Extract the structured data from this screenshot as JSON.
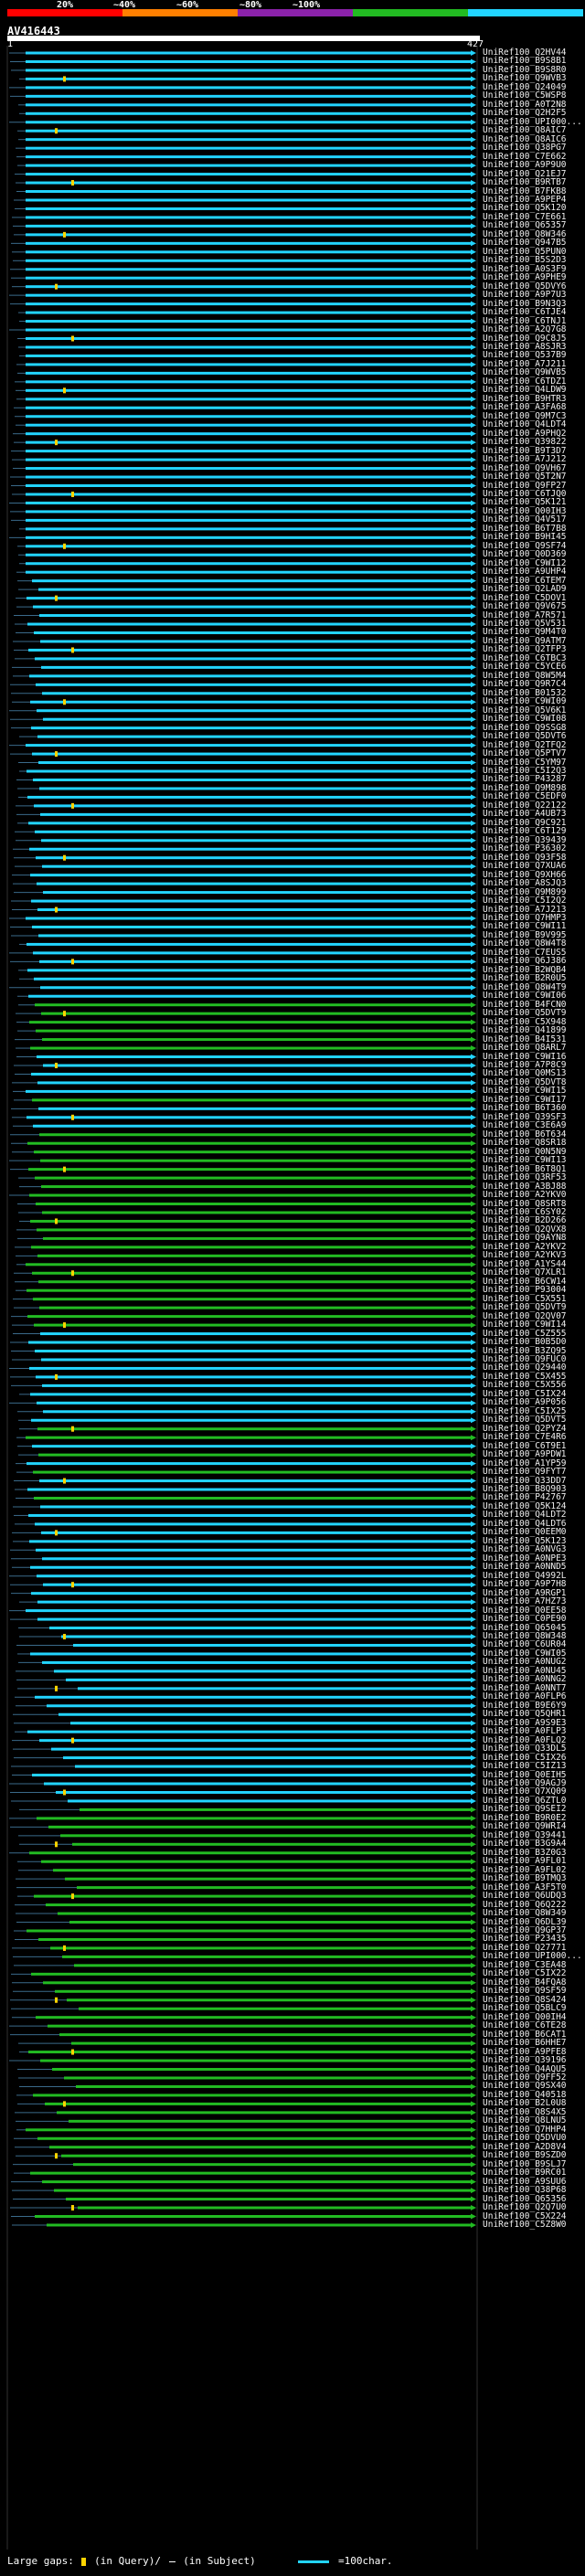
{
  "legend": {
    "labels": [
      "20%",
      "~40%",
      "~60%",
      "~80%",
      "~100%"
    ],
    "colors": [
      "#ff0000",
      "#ff7f00",
      "#8b22aa",
      "#22bb22",
      "#22d4ff"
    ]
  },
  "query": {
    "title": "AV416443",
    "start": "1",
    "end": "427"
  },
  "hits": [
    {
      "name": "UniRef100_Q2HV44",
      "color": "cyan"
    },
    {
      "name": "UniRef100_B9S8B1",
      "color": "cyan"
    },
    {
      "name": "UniRef100_B9S8R0",
      "color": "cyan"
    },
    {
      "name": "UniRef100_Q9WVB3",
      "color": "cyan"
    },
    {
      "name": "UniRef100_Q24049",
      "color": "cyan"
    },
    {
      "name": "UniRef100_C5WSP8",
      "color": "cyan"
    },
    {
      "name": "UniRef100_A0T2N8",
      "color": "cyan"
    },
    {
      "name": "UniRef100_Q2H2F5",
      "color": "cyan"
    },
    {
      "name": "UniRef100_UPI000...",
      "color": "cyan"
    },
    {
      "name": "UniRef100_Q8AIC7",
      "color": "cyan"
    },
    {
      "name": "UniRef100_Q8AIC6",
      "color": "cyan"
    },
    {
      "name": "UniRef100_Q38PG7",
      "color": "cyan"
    },
    {
      "name": "UniRef100_C7E662",
      "color": "cyan"
    },
    {
      "name": "UniRef100_A9P9U0",
      "color": "cyan"
    },
    {
      "name": "UniRef100_Q21EJ7",
      "color": "cyan"
    },
    {
      "name": "UniRef100_B9RTB7",
      "color": "cyan"
    },
    {
      "name": "UniRef100_B7FKB8",
      "color": "cyan"
    },
    {
      "name": "UniRef100_A9PEP4",
      "color": "cyan"
    },
    {
      "name": "UniRef100_Q5K120",
      "color": "cyan"
    },
    {
      "name": "UniRef100_C7E661",
      "color": "cyan"
    },
    {
      "name": "UniRef100_Q65357",
      "color": "cyan"
    },
    {
      "name": "UniRef100_Q8W346",
      "color": "cyan"
    },
    {
      "name": "UniRef100_Q947B5",
      "color": "cyan"
    },
    {
      "name": "UniRef100_Q5PUN0",
      "color": "cyan"
    },
    {
      "name": "UniRef100_B5S2D3",
      "color": "cyan"
    },
    {
      "name": "UniRef100_A0S3F9",
      "color": "cyan"
    },
    {
      "name": "UniRef100_A9PHE9",
      "color": "cyan"
    },
    {
      "name": "UniRef100_Q5DVY6",
      "color": "cyan"
    },
    {
      "name": "UniRef100_A9P7U3",
      "color": "cyan"
    },
    {
      "name": "UniRef100_B9N3Q3",
      "color": "cyan"
    },
    {
      "name": "UniRef100_C6TJE4",
      "color": "cyan"
    },
    {
      "name": "UniRef100_C6TNJ1",
      "color": "cyan"
    },
    {
      "name": "UniRef100_A2Q7G8",
      "color": "cyan"
    },
    {
      "name": "UniRef100_Q9C8J5",
      "color": "cyan"
    },
    {
      "name": "UniRef100_A8SJR3",
      "color": "cyan"
    },
    {
      "name": "UniRef100_Q537B9",
      "color": "cyan"
    },
    {
      "name": "UniRef100_A7J211",
      "color": "cyan"
    },
    {
      "name": "UniRef100_Q9WVB5",
      "color": "cyan"
    },
    {
      "name": "UniRef100_C6TDZ1",
      "color": "cyan"
    },
    {
      "name": "UniRef100_Q4LDW9",
      "color": "cyan"
    },
    {
      "name": "UniRef100_B9HTR3",
      "color": "cyan"
    },
    {
      "name": "UniRef100_A3FA68",
      "color": "cyan"
    },
    {
      "name": "UniRef100_Q9M7C3",
      "color": "cyan"
    },
    {
      "name": "UniRef100_Q4LDT4",
      "color": "cyan"
    },
    {
      "name": "UniRef100_A9PHQ2",
      "color": "cyan"
    },
    {
      "name": "UniRef100_Q39822",
      "color": "cyan"
    },
    {
      "name": "UniRef100_B9T3D7",
      "color": "cyan"
    },
    {
      "name": "UniRef100_A7J212",
      "color": "cyan"
    },
    {
      "name": "UniRef100_Q9VH67",
      "color": "cyan"
    },
    {
      "name": "UniRef100_Q5T2N7",
      "color": "cyan"
    },
    {
      "name": "UniRef100_Q9FP27",
      "color": "cyan"
    },
    {
      "name": "UniRef100_C6TJQ0",
      "color": "cyan"
    },
    {
      "name": "UniRef100_Q5K121",
      "color": "cyan"
    },
    {
      "name": "UniRef100_Q00IH3",
      "color": "cyan"
    },
    {
      "name": "UniRef100_Q4V517",
      "color": "cyan"
    },
    {
      "name": "UniRef100_B6T7B8",
      "color": "cyan"
    },
    {
      "name": "UniRef100_B9HI45",
      "color": "cyan"
    },
    {
      "name": "UniRef100_Q9SF74",
      "color": "cyan"
    },
    {
      "name": "UniRef100_Q0D369",
      "color": "cyan"
    },
    {
      "name": "UniRef100_C9WI12",
      "color": "cyan"
    },
    {
      "name": "UniRef100_A9UHP4",
      "color": "cyan"
    },
    {
      "name": "UniRef100_C6TEM7",
      "color": "cyan"
    },
    {
      "name": "UniRef100_Q2LAD9",
      "color": "cyan"
    },
    {
      "name": "UniRef100_C5DOV1",
      "color": "cyan"
    },
    {
      "name": "UniRef100_Q9V675",
      "color": "cyan"
    },
    {
      "name": "UniRef100_A7R571",
      "color": "cyan"
    },
    {
      "name": "UniRef100_Q5V531",
      "color": "cyan"
    },
    {
      "name": "UniRef100_Q9M4T0",
      "color": "cyan"
    },
    {
      "name": "UniRef100_Q9ATM7",
      "color": "cyan"
    },
    {
      "name": "UniRef100_Q2TFP3",
      "color": "cyan"
    },
    {
      "name": "UniRef100_C6TBC3",
      "color": "cyan"
    },
    {
      "name": "UniRef100_C5YCE6",
      "color": "cyan"
    },
    {
      "name": "UniRef100_Q8W5M4",
      "color": "cyan"
    },
    {
      "name": "UniRef100_Q9R7C4",
      "color": "cyan"
    },
    {
      "name": "UniRef100_B01532",
      "color": "cyan"
    },
    {
      "name": "UniRef100_C9WI09",
      "color": "cyan"
    },
    {
      "name": "UniRef100_Q5V6K1",
      "color": "cyan"
    },
    {
      "name": "UniRef100_C9WI08",
      "color": "cyan"
    },
    {
      "name": "UniRef100_Q9SSG8",
      "color": "cyan"
    },
    {
      "name": "UniRef100_Q5DVT6",
      "color": "cyan"
    },
    {
      "name": "UniRef100_Q2TFQ2",
      "color": "cyan"
    },
    {
      "name": "UniRef100_Q5PTV7",
      "color": "cyan"
    },
    {
      "name": "UniRef100_C5YM97",
      "color": "cyan"
    },
    {
      "name": "UniRef100_C5I2Q3",
      "color": "cyan"
    },
    {
      "name": "UniRef100_P43287",
      "color": "cyan"
    },
    {
      "name": "UniRef100_Q9M898",
      "color": "cyan"
    },
    {
      "name": "UniRef100_C5EDF0",
      "color": "cyan"
    },
    {
      "name": "UniRef100_Q22122",
      "color": "cyan"
    },
    {
      "name": "UniRef100_A4UB73",
      "color": "cyan"
    },
    {
      "name": "UniRef100_Q9C921",
      "color": "cyan"
    },
    {
      "name": "UniRef100_C6T129",
      "color": "cyan"
    },
    {
      "name": "UniRef100_Q39439",
      "color": "cyan"
    },
    {
      "name": "UniRef100_P36302",
      "color": "cyan"
    },
    {
      "name": "UniRef100_Q93F58",
      "color": "cyan"
    },
    {
      "name": "UniRef100_Q7XUA6",
      "color": "cyan"
    },
    {
      "name": "UniRef100_Q9XH66",
      "color": "cyan"
    },
    {
      "name": "UniRef100_A8SJQ3",
      "color": "cyan"
    },
    {
      "name": "UniRef100_Q9M899",
      "color": "cyan"
    },
    {
      "name": "UniRef100_C5I2Q2",
      "color": "cyan"
    },
    {
      "name": "UniRef100_A7J213",
      "color": "cyan"
    },
    {
      "name": "UniRef100_Q7HMP3",
      "color": "cyan"
    },
    {
      "name": "UniRef100_C9WI11",
      "color": "cyan"
    },
    {
      "name": "UniRef100_B9V995",
      "color": "cyan"
    },
    {
      "name": "UniRef100_Q8W4T8",
      "color": "cyan"
    },
    {
      "name": "UniRef100_C7EUS5",
      "color": "cyan"
    },
    {
      "name": "UniRef100_Q6J386",
      "color": "cyan"
    },
    {
      "name": "UniRef100_B2WQB4",
      "color": "cyan"
    },
    {
      "name": "UniRef100_B2R0U5",
      "color": "cyan"
    },
    {
      "name": "UniRef100_Q8W4T9",
      "color": "cyan"
    },
    {
      "name": "UniRef100_C9WI06",
      "color": "cyan"
    },
    {
      "name": "UniRef100_B4FCN0",
      "color": "green"
    },
    {
      "name": "UniRef100_Q5DVT9",
      "color": "green"
    },
    {
      "name": "UniRef100_C5X948",
      "color": "green"
    },
    {
      "name": "UniRef100_Q41899",
      "color": "green"
    },
    {
      "name": "UniRef100_B4I531",
      "color": "green"
    },
    {
      "name": "UniRef100_Q8ARL7",
      "color": "green"
    },
    {
      "name": "UniRef100_C9WI16",
      "color": "cyan"
    },
    {
      "name": "UniRef100_A7P8C9",
      "color": "cyan"
    },
    {
      "name": "UniRef100_Q0MS13",
      "color": "cyan"
    },
    {
      "name": "UniRef100_Q5DVT8",
      "color": "cyan"
    },
    {
      "name": "UniRef100_C9WI15",
      "color": "cyan"
    },
    {
      "name": "UniRef100_C9WI17",
      "color": "green"
    },
    {
      "name": "UniRef100_B6T360",
      "color": "cyan"
    },
    {
      "name": "UniRef100_Q39SF3",
      "color": "cyan"
    },
    {
      "name": "UniRef100_C3E6A9",
      "color": "cyan"
    },
    {
      "name": "UniRef100_B6T634",
      "color": "green"
    },
    {
      "name": "UniRef100_Q8SR18",
      "color": "green"
    },
    {
      "name": "UniRef100_Q0N5N9",
      "color": "green"
    },
    {
      "name": "UniRef100_C9WI13",
      "color": "green"
    },
    {
      "name": "UniRef100_B6T8Q1",
      "color": "green"
    },
    {
      "name": "UniRef100_Q3RF53",
      "color": "green"
    },
    {
      "name": "UniRef100_A3BJ88",
      "color": "green"
    },
    {
      "name": "UniRef100_A2YKV0",
      "color": "green"
    },
    {
      "name": "UniRef100_Q8SRT8",
      "color": "green"
    },
    {
      "name": "UniRef100_C6SY02",
      "color": "green"
    },
    {
      "name": "UniRef100_B2D266",
      "color": "green"
    },
    {
      "name": "UniRef100_Q2QVX8",
      "color": "green"
    },
    {
      "name": "UniRef100_Q9AYN8",
      "color": "green"
    },
    {
      "name": "UniRef100_A2YKV2",
      "color": "green"
    },
    {
      "name": "UniRef100_A2YKV3",
      "color": "green"
    },
    {
      "name": "UniRef100_A1YS44",
      "color": "green"
    },
    {
      "name": "UniRef100_Q7XLR1",
      "color": "green"
    },
    {
      "name": "UniRef100_B6CW14",
      "color": "green"
    },
    {
      "name": "UniRef100_P93004",
      "color": "green"
    },
    {
      "name": "UniRef100_C5X551",
      "color": "green"
    },
    {
      "name": "UniRef100_Q5DVT9",
      "color": "green"
    },
    {
      "name": "UniRef100_Q2QV07",
      "color": "green"
    },
    {
      "name": "UniRef100_C9WI14",
      "color": "green"
    },
    {
      "name": "UniRef100_C5Z555",
      "color": "cyan"
    },
    {
      "name": "UniRef100_B0B5D0",
      "color": "cyan"
    },
    {
      "name": "UniRef100_B3ZQ95",
      "color": "cyan"
    },
    {
      "name": "UniRef100_Q9FUC0",
      "color": "cyan"
    },
    {
      "name": "UniRef100_Q29440",
      "color": "cyan"
    },
    {
      "name": "UniRef100_C5X455",
      "color": "cyan"
    },
    {
      "name": "UniRef100_C5X556",
      "color": "cyan"
    },
    {
      "name": "UniRef100_C5IX24",
      "color": "cyan"
    },
    {
      "name": "UniRef100_A9P056",
      "color": "cyan"
    },
    {
      "name": "UniRef100_C5IX25",
      "color": "cyan"
    },
    {
      "name": "UniRef100_Q5DVT5",
      "color": "cyan"
    },
    {
      "name": "UniRef100_Q2PYZ4",
      "color": "green"
    },
    {
      "name": "UniRef100_C7E4R6",
      "color": "green"
    },
    {
      "name": "UniRef100_C6T9E1",
      "color": "cyan"
    },
    {
      "name": "UniRef100_A9PDW1",
      "color": "green"
    },
    {
      "name": "UniRef100_A1YP59",
      "color": "cyan"
    },
    {
      "name": "UniRef100_Q9FYT7",
      "color": "green"
    },
    {
      "name": "UniRef100_Q33DD7",
      "color": "cyan"
    },
    {
      "name": "UniRef100_B8Q903",
      "color": "cyan"
    },
    {
      "name": "UniRef100_P42767",
      "color": "green"
    },
    {
      "name": "UniRef100_Q5K124",
      "color": "cyan"
    },
    {
      "name": "UniRef100_Q4LDT2",
      "color": "cyan"
    },
    {
      "name": "UniRef100_Q4LDT6",
      "color": "cyan"
    },
    {
      "name": "UniRef100_Q0EEM0",
      "color": "cyan"
    },
    {
      "name": "UniRef100_Q5K123",
      "color": "cyan"
    },
    {
      "name": "UniRef100_A0NVG3",
      "color": "cyan"
    },
    {
      "name": "UniRef100_A0NPE3",
      "color": "cyan"
    },
    {
      "name": "UniRef100_A0NND5",
      "color": "cyan"
    },
    {
      "name": "UniRef100_Q4992L",
      "color": "cyan"
    },
    {
      "name": "UniRef100_A9P7H8",
      "color": "cyan"
    },
    {
      "name": "UniRef100_A9RGP1",
      "color": "cyan"
    },
    {
      "name": "UniRef100_A7HZ73",
      "color": "cyan"
    },
    {
      "name": "UniRef100_Q0EE58",
      "color": "cyan"
    },
    {
      "name": "UniRef100_C0PE90",
      "color": "cyan"
    },
    {
      "name": "UniRef100_Q65045",
      "color": "cyan"
    },
    {
      "name": "UniRef100_Q8W348",
      "color": "cyan"
    },
    {
      "name": "UniRef100_C6UR04",
      "color": "cyan"
    },
    {
      "name": "UniRef100_C9WI05",
      "color": "cyan"
    },
    {
      "name": "UniRef100_A0NUG2",
      "color": "cyan"
    },
    {
      "name": "UniRef100_A0NU45",
      "color": "cyan"
    },
    {
      "name": "UniRef100_A0NNG2",
      "color": "cyan"
    },
    {
      "name": "UniRef100_A0NNT7",
      "color": "cyan"
    },
    {
      "name": "UniRef100_A0FLP6",
      "color": "cyan"
    },
    {
      "name": "UniRef100_B9E6Y9",
      "color": "cyan"
    },
    {
      "name": "UniRef100_Q5QHR1",
      "color": "cyan"
    },
    {
      "name": "UniRef100_A9S9E3",
      "color": "cyan"
    },
    {
      "name": "UniRef100_A0FLP3",
      "color": "cyan"
    },
    {
      "name": "UniRef100_A0FLQ2",
      "color": "cyan"
    },
    {
      "name": "UniRef100_Q33DL5",
      "color": "cyan"
    },
    {
      "name": "UniRef100_C5IX26",
      "color": "cyan"
    },
    {
      "name": "UniRef100_C5IZ13",
      "color": "cyan"
    },
    {
      "name": "UniRef100_Q0EIH5",
      "color": "cyan"
    },
    {
      "name": "UniRef100_Q9AGJ9",
      "color": "cyan"
    },
    {
      "name": "UniRef100_Q7XQ09",
      "color": "cyan"
    },
    {
      "name": "UniRef100_Q6ZTL0",
      "color": "cyan"
    },
    {
      "name": "UniRef100_Q9SEI2",
      "color": "green"
    },
    {
      "name": "UniRef100_B9R0E2",
      "color": "green"
    },
    {
      "name": "UniRef100_Q9WRI4",
      "color": "green"
    },
    {
      "name": "UniRef100_Q39441",
      "color": "green"
    },
    {
      "name": "UniRef100_B3G9A4",
      "color": "green"
    },
    {
      "name": "UniRef100_B3Z0G3",
      "color": "green"
    },
    {
      "name": "UniRef100_A9FL01",
      "color": "green"
    },
    {
      "name": "UniRef100_A9FL02",
      "color": "green"
    },
    {
      "name": "UniRef100_B9TMQ3",
      "color": "green"
    },
    {
      "name": "UniRef100_A3F5T0",
      "color": "green"
    },
    {
      "name": "UniRef100_Q6UDQ3",
      "color": "green"
    },
    {
      "name": "UniRef100_Q6Q222",
      "color": "green"
    },
    {
      "name": "UniRef100_Q8W349",
      "color": "green"
    },
    {
      "name": "UniRef100_Q6DL39",
      "color": "green"
    },
    {
      "name": "UniRef100_Q9GP37",
      "color": "green"
    },
    {
      "name": "UniRef100_P23435",
      "color": "green"
    },
    {
      "name": "UniRef100_Q27771",
      "color": "green"
    },
    {
      "name": "UniRef100_UPI000...",
      "color": "green"
    },
    {
      "name": "UniRef100_C3EA48",
      "color": "green"
    },
    {
      "name": "UniRef100_C5IX22",
      "color": "green"
    },
    {
      "name": "UniRef100_B4FQA8",
      "color": "green"
    },
    {
      "name": "UniRef100_Q9SF59",
      "color": "green"
    },
    {
      "name": "UniRef100_Q8S424",
      "color": "green"
    },
    {
      "name": "UniRef100_Q5BLC9",
      "color": "green"
    },
    {
      "name": "UniRef100_Q00IH4",
      "color": "green"
    },
    {
      "name": "UniRef100_C6TE28",
      "color": "green"
    },
    {
      "name": "UniRef100_B6CAT1",
      "color": "green"
    },
    {
      "name": "UniRef100_B6HHE7",
      "color": "green"
    },
    {
      "name": "UniRef100_A9PFE8",
      "color": "green"
    },
    {
      "name": "UniRef100_Q39196",
      "color": "green"
    },
    {
      "name": "UniRef100_Q4AQU5",
      "color": "green"
    },
    {
      "name": "UniRef100_Q9FF52",
      "color": "green"
    },
    {
      "name": "UniRef100_Q9SX40",
      "color": "green"
    },
    {
      "name": "UniRef100_Q40518",
      "color": "green"
    },
    {
      "name": "UniRef100_B2L0U8",
      "color": "green"
    },
    {
      "name": "UniRef100_Q8S4X5",
      "color": "green"
    },
    {
      "name": "UniRef100_Q8LNU5",
      "color": "green"
    },
    {
      "name": "UniRef100_Q7HHP4",
      "color": "green"
    },
    {
      "name": "UniRef100_Q5DVU0",
      "color": "green"
    },
    {
      "name": "UniRef100_A2D8V4",
      "color": "green"
    },
    {
      "name": "UniRef100_B9SZD0",
      "color": "green"
    },
    {
      "name": "UniRef100_B9SLJ7",
      "color": "green"
    },
    {
      "name": "UniRef100_B9RC01",
      "color": "green"
    },
    {
      "name": "UniRef100_A9SUU6",
      "color": "green"
    },
    {
      "name": "UniRef100_Q38P68",
      "color": "green"
    },
    {
      "name": "UniRef100_Q65356",
      "color": "green"
    },
    {
      "name": "UniRef100_Q2Q7U0",
      "color": "green"
    },
    {
      "name": "UniRef100_C5X224",
      "color": "green"
    },
    {
      "name": "UniRef100_C5Z8W0",
      "color": "green"
    }
  ],
  "footer": {
    "text1": "Large gaps:",
    "text2": "(in Query)/",
    "text3": "(in Subject)",
    "text4": "=100char."
  }
}
